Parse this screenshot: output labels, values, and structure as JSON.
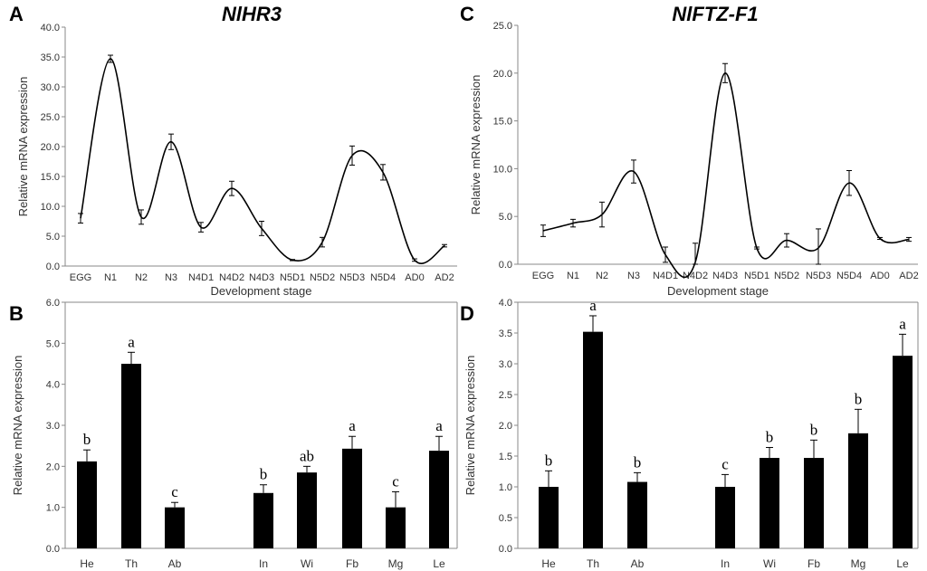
{
  "chart_data": [
    {
      "panel": "A",
      "type": "line",
      "title": "NlHR3",
      "xlabel": "Development stage",
      "ylabel": "Relative mRNA expression",
      "ylim": [
        0,
        40
      ],
      "yticks": [
        "0.0",
        "5.0",
        "10.0",
        "15.0",
        "20.0",
        "25.0",
        "30.0",
        "35.0",
        "40.0"
      ],
      "categories": [
        "EGG",
        "N1",
        "N2",
        "N3",
        "N4D1",
        "N4D2",
        "N4D3",
        "N5D1",
        "N5D2",
        "N5D3",
        "N5D4",
        "AD0",
        "AD2"
      ],
      "values": [
        8.0,
        34.7,
        8.2,
        20.8,
        6.5,
        13.0,
        6.3,
        1.0,
        4.0,
        18.5,
        15.7,
        1.0,
        3.4
      ],
      "errors": [
        0.8,
        0.6,
        1.2,
        1.3,
        0.8,
        1.2,
        1.2,
        0.1,
        0.8,
        1.6,
        1.3,
        0.2,
        0.2
      ]
    },
    {
      "panel": "C",
      "type": "line",
      "title": "NlFTZ-F1",
      "xlabel": "Development stage",
      "ylabel": "Relative mRNA expression",
      "ylim": [
        0,
        25
      ],
      "yticks": [
        "0.0",
        "5.0",
        "10.0",
        "15.0",
        "20.0",
        "25.0"
      ],
      "categories": [
        "EGG",
        "N1",
        "N2",
        "N3",
        "N4D1",
        "N4D2",
        "N4D3",
        "N5D1",
        "N5D2",
        "N5D3",
        "N5D4",
        "AD0",
        "AD2"
      ],
      "values": [
        3.5,
        4.3,
        5.2,
        9.7,
        1.0,
        0.2,
        20.0,
        1.7,
        2.5,
        1.7,
        8.5,
        2.7,
        2.6
      ],
      "errors": [
        0.6,
        0.4,
        1.3,
        1.2,
        0.8,
        2.0,
        1.0,
        0.1,
        0.7,
        2.0,
        1.3,
        0.1,
        0.2
      ]
    },
    {
      "panel": "B",
      "type": "bar",
      "title": "",
      "xlabel": "",
      "ylabel": "Relative mRNA expression",
      "ylim": [
        0,
        6
      ],
      "yticks": [
        "0.0",
        "1.0",
        "2.0",
        "3.0",
        "4.0",
        "5.0",
        "6.0"
      ],
      "categories": [
        "He",
        "Th",
        "Ab",
        "In",
        "Wi",
        "Fb",
        "Mg",
        "Le"
      ],
      "values": [
        2.12,
        4.5,
        1.0,
        1.35,
        1.85,
        2.43,
        1.0,
        2.38
      ],
      "errors": [
        0.28,
        0.28,
        0.12,
        0.2,
        0.15,
        0.3,
        0.38,
        0.35
      ],
      "letters": [
        "b",
        "a",
        "c",
        "b",
        "ab",
        "a",
        "c",
        "a"
      ]
    },
    {
      "panel": "D",
      "type": "bar",
      "title": "",
      "xlabel": "",
      "ylabel": "Relative mRNA expression",
      "ylim": [
        0,
        4
      ],
      "yticks": [
        "0.0",
        "0.5",
        "1.0",
        "1.5",
        "2.0",
        "2.5",
        "3.0",
        "3.5",
        "4.0"
      ],
      "categories": [
        "He",
        "Th",
        "Ab",
        "In",
        "Wi",
        "Fb",
        "Mg",
        "Le"
      ],
      "values": [
        1.0,
        3.52,
        1.08,
        1.0,
        1.47,
        1.47,
        1.87,
        3.13
      ],
      "errors": [
        0.26,
        0.26,
        0.15,
        0.2,
        0.17,
        0.29,
        0.39,
        0.35
      ],
      "letters": [
        "b",
        "a",
        "b",
        "c",
        "b",
        "b",
        "b",
        "a"
      ]
    }
  ]
}
